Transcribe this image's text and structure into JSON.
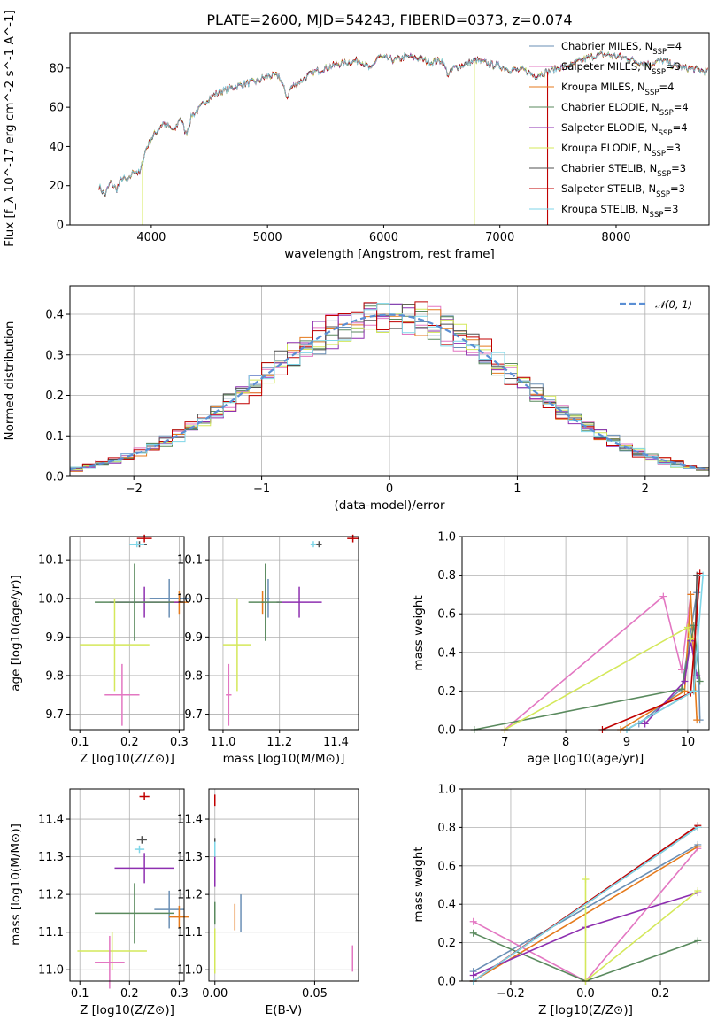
{
  "figure": {
    "title": "PLATE=2600, MJD=54243, FIBERID=0373, z=0.074"
  },
  "colors": {
    "chabrier_miles": "#6a8fb5",
    "salpeter_miles": "#e377c2",
    "kroupa_miles": "#e57a1c",
    "chabrier_elodie": "#5a8a5e",
    "salpeter_elodie": "#8e2fb0",
    "kroupa_elodie": "#d4e85a",
    "chabrier_stelib": "#505050",
    "salpeter_stelib": "#c00000",
    "kroupa_stelib": "#7fd6e8",
    "gauss": "#5b8fd4"
  },
  "chart_data": [
    {
      "id": "spectrum",
      "type": "line",
      "title": "PLATE=2600, MJD=54243, FIBERID=0373, z=0.074",
      "xlabel": "wavelength [Angstrom, rest frame]",
      "ylabel": "Flux [f_λ 10^-17 erg cm^-2 s^-1 A^-1]",
      "xlim": [
        3300,
        8800
      ],
      "ylim": [
        0,
        98
      ],
      "xticks": [
        "4000",
        "5000",
        "6000",
        "7000",
        "8000"
      ],
      "yticks": [
        "0",
        "20",
        "40",
        "60",
        "80"
      ],
      "grid": false,
      "legend_position": "top-right",
      "x": [
        3550,
        3600,
        3650,
        3700,
        3750,
        3800,
        3850,
        3900,
        3950,
        4000,
        4050,
        4100,
        4150,
        4200,
        4250,
        4300,
        4350,
        4400,
        4450,
        4500,
        4600,
        4700,
        4800,
        4900,
        5000,
        5100,
        5170,
        5200,
        5300,
        5400,
        5500,
        5600,
        5700,
        5800,
        5890,
        5950,
        6000,
        6100,
        6200,
        6300,
        6400,
        6500,
        6560,
        6600,
        6700,
        6800,
        6900,
        7000,
        7100,
        7200,
        7300,
        7400,
        7500,
        7600,
        7700,
        7800,
        7900,
        8000,
        8100,
        8200,
        8300,
        8400,
        8500,
        8600,
        8700,
        8790
      ],
      "y": [
        20,
        15,
        22,
        18,
        24,
        22,
        28,
        26,
        38,
        44,
        48,
        52,
        50,
        48,
        55,
        46,
        56,
        58,
        62,
        65,
        68,
        70,
        72,
        73,
        76,
        76,
        65,
        70,
        74,
        78,
        80,
        82,
        83,
        84,
        79,
        86,
        85,
        84,
        86,
        85,
        83,
        84,
        76,
        80,
        82,
        84,
        82,
        81,
        79,
        79,
        76,
        78,
        80,
        81,
        84,
        86,
        87,
        86,
        85,
        83,
        82,
        84,
        81,
        80,
        79,
        78
      ],
      "series": [
        {
          "name": "Chabrier MILES, N_SSP=4",
          "key": "chabrier_miles"
        },
        {
          "name": "Salpeter MILES, N_SSP=3",
          "key": "salpeter_miles"
        },
        {
          "name": "Kroupa MILES, N_SSP=4",
          "key": "kroupa_miles"
        },
        {
          "name": "Chabrier ELODIE, N_SSP=4",
          "key": "chabrier_elodie"
        },
        {
          "name": "Salpeter ELODIE, N_SSP=4",
          "key": "salpeter_elodie"
        },
        {
          "name": "Kroupa ELODIE, N_SSP=3",
          "key": "kroupa_elodie"
        },
        {
          "name": "Chabrier STELIB, N_SSP=3",
          "key": "chabrier_stelib"
        },
        {
          "name": "Salpeter STELIB, N_SSP=3",
          "key": "salpeter_stelib"
        },
        {
          "name": "Kroupa STELIB, N_SSP=3",
          "key": "kroupa_stelib"
        }
      ]
    },
    {
      "id": "residuals",
      "type": "histogram",
      "xlabel": "(data-model)/error",
      "ylabel": "Normed distribution",
      "xlim": [
        -2.5,
        2.5
      ],
      "ylim": [
        0,
        0.47
      ],
      "xticks": [
        "−2",
        "−1",
        "0",
        "1",
        "2"
      ],
      "yticks": [
        "0.0",
        "0.1",
        "0.2",
        "0.3",
        "0.4"
      ],
      "grid": true,
      "legend_position": "top-right",
      "legend": "N(0,1)",
      "reference_curve": "standard normal, peak 0.399"
    },
    {
      "id": "age_vs_Z",
      "type": "scatter",
      "xlabel": "Z [log10(Z/Z⊙)]",
      "ylabel": "age  [log10(age/yr)]",
      "xlim": [
        0.08,
        0.31
      ],
      "ylim": [
        9.66,
        10.16
      ],
      "xticks": [
        "0.1",
        "0.2",
        "0.3"
      ],
      "yticks": [
        "9.7",
        "9.8",
        "9.9",
        "10.0",
        "10.1"
      ],
      "grid": true,
      "points": [
        {
          "key": "salpeter_stelib",
          "x": 0.23,
          "y": 10.155,
          "xerr": 0.015,
          "yerr": 0.01
        },
        {
          "key": "chabrier_stelib",
          "x": 0.22,
          "y": 10.14,
          "xerr": 0.015,
          "yerr": 0.008
        },
        {
          "key": "kroupa_stelib",
          "x": 0.215,
          "y": 10.14,
          "xerr": 0.015,
          "yerr": 0.008
        },
        {
          "key": "chabrier_miles",
          "x": 0.28,
          "y": 10.0,
          "xerr": 0.04,
          "yerr": 0.05
        },
        {
          "key": "kroupa_miles",
          "x": 0.3,
          "y": 9.99,
          "xerr": 0.02,
          "yerr": 0.03
        },
        {
          "key": "salpeter_elodie",
          "x": 0.23,
          "y": 9.99,
          "xerr": 0.07,
          "yerr": 0.04
        },
        {
          "key": "chabrier_elodie",
          "x": 0.21,
          "y": 9.99,
          "xerr": 0.08,
          "yerr": 0.1
        },
        {
          "key": "kroupa_elodie",
          "x": 0.17,
          "y": 9.88,
          "xerr": 0.07,
          "yerr": 0.12
        },
        {
          "key": "salpeter_miles",
          "x": 0.185,
          "y": 9.75,
          "xerr": 0.035,
          "yerr": 0.08
        }
      ]
    },
    {
      "id": "age_vs_mass",
      "type": "scatter",
      "xlabel": "mass [log10(M/M⊙)]",
      "xlim": [
        10.95,
        11.48
      ],
      "ylim": [
        9.66,
        10.16
      ],
      "xticks": [
        "11.0",
        "11.2",
        "11.4"
      ],
      "yticks": [
        "9.7",
        "9.8",
        "9.9",
        "10.0",
        "10.1"
      ],
      "grid": true,
      "points": [
        {
          "key": "salpeter_stelib",
          "x": 11.46,
          "y": 10.155,
          "xerr": 0.02,
          "yerr": 0.01
        },
        {
          "key": "chabrier_stelib",
          "x": 11.34,
          "y": 10.14,
          "xerr": 0.01,
          "yerr": 0.008
        },
        {
          "key": "kroupa_stelib",
          "x": 11.32,
          "y": 10.14,
          "xerr": 0.01,
          "yerr": 0.008
        },
        {
          "key": "chabrier_miles",
          "x": 11.16,
          "y": 10.0,
          "xerr": 0.005,
          "yerr": 0.05
        },
        {
          "key": "kroupa_miles",
          "x": 11.14,
          "y": 9.99,
          "xerr": 0.005,
          "yerr": 0.03
        },
        {
          "key": "salpeter_elodie",
          "x": 11.27,
          "y": 9.99,
          "xerr": 0.08,
          "yerr": 0.04
        },
        {
          "key": "chabrier_elodie",
          "x": 11.15,
          "y": 9.99,
          "xerr": 0.06,
          "yerr": 0.1
        },
        {
          "key": "kroupa_elodie",
          "x": 11.05,
          "y": 9.88,
          "xerr": 0.05,
          "yerr": 0.12
        },
        {
          "key": "salpeter_miles",
          "x": 11.02,
          "y": 9.75,
          "xerr": 0.01,
          "yerr": 0.08
        }
      ]
    },
    {
      "id": "weight_vs_age",
      "type": "line",
      "xlabel": "age  [log10(age/yr)]",
      "ylabel": "mass weight",
      "xlim": [
        6.3,
        10.35
      ],
      "ylim": [
        0,
        1.0
      ],
      "xticks": [
        "7",
        "8",
        "9",
        "10"
      ],
      "yticks": [
        "0.0",
        "0.2",
        "0.4",
        "0.6",
        "0.8",
        "1.0"
      ],
      "grid": true,
      "series": [
        {
          "key": "chabrier_miles",
          "x": [
            9.2,
            9.9,
            10.15,
            10.2
          ],
          "y": [
            0.03,
            0.21,
            0.71,
            0.05
          ]
        },
        {
          "key": "salpeter_miles",
          "x": [
            7.0,
            9.6,
            9.9,
            10.05
          ],
          "y": [
            0.0,
            0.69,
            0.31,
            0.7
          ]
        },
        {
          "key": "kroupa_miles",
          "x": [
            8.9,
            9.95,
            10.05,
            10.15
          ],
          "y": [
            0.0,
            0.2,
            0.7,
            0.05
          ]
        },
        {
          "key": "chabrier_elodie",
          "x": [
            6.5,
            9.9,
            10.1,
            10.2
          ],
          "y": [
            0.0,
            0.21,
            0.54,
            0.25
          ]
        },
        {
          "key": "salpeter_elodie",
          "x": [
            9.3,
            9.95,
            10.05,
            10.15
          ],
          "y": [
            0.03,
            0.25,
            0.46,
            0.28
          ]
        },
        {
          "key": "kroupa_elodie",
          "x": [
            7.0,
            10.0,
            10.05
          ],
          "y": [
            0.0,
            0.53,
            0.47
          ]
        },
        {
          "key": "chabrier_stelib",
          "x": [
            9.0,
            10.1,
            10.15
          ],
          "y": [
            0.0,
            0.2,
            0.8
          ]
        },
        {
          "key": "salpeter_stelib",
          "x": [
            8.6,
            10.05,
            10.2
          ],
          "y": [
            0.0,
            0.19,
            0.81
          ]
        },
        {
          "key": "kroupa_stelib",
          "x": [
            9.0,
            10.1,
            10.25
          ],
          "y": [
            0.0,
            0.2,
            0.8
          ]
        }
      ]
    },
    {
      "id": "mass_vs_Z",
      "type": "scatter",
      "xlabel": "Z [log10(Z/Z⊙)]",
      "ylabel": "mass [log10(M/M⊙)]",
      "xlim": [
        0.08,
        0.31
      ],
      "ylim": [
        10.97,
        11.48
      ],
      "xticks": [
        "0.1",
        "0.2",
        "0.3"
      ],
      "yticks": [
        "11.0",
        "11.1",
        "11.2",
        "11.3",
        "11.4"
      ],
      "grid": true,
      "points": [
        {
          "key": "salpeter_stelib",
          "x": 0.23,
          "y": 11.46,
          "xerr": 0.01,
          "yerr": 0.01
        },
        {
          "key": "chabrier_stelib",
          "x": 0.225,
          "y": 11.345,
          "xerr": 0.01,
          "yerr": 0.01
        },
        {
          "key": "kroupa_stelib",
          "x": 0.22,
          "y": 11.32,
          "xerr": 0.01,
          "yerr": 0.01
        },
        {
          "key": "salpeter_elodie",
          "x": 0.23,
          "y": 11.27,
          "xerr": 0.06,
          "yerr": 0.04
        },
        {
          "key": "chabrier_miles",
          "x": 0.28,
          "y": 11.16,
          "xerr": 0.03,
          "yerr": 0.05
        },
        {
          "key": "chabrier_elodie",
          "x": 0.21,
          "y": 11.15,
          "xerr": 0.08,
          "yerr": 0.08
        },
        {
          "key": "kroupa_miles",
          "x": 0.3,
          "y": 11.14,
          "xerr": 0.02,
          "yerr": 0.03
        },
        {
          "key": "kroupa_elodie",
          "x": 0.165,
          "y": 11.05,
          "xerr": 0.07,
          "yerr": 0.05
        },
        {
          "key": "salpeter_miles",
          "x": 0.16,
          "y": 11.02,
          "xerr": 0.03,
          "yerr": 0.07
        }
      ]
    },
    {
      "id": "mass_vs_ebv",
      "type": "scatter",
      "xlabel": "E(B-V)",
      "xlim": [
        -0.003,
        0.072
      ],
      "ylim": [
        10.97,
        11.48
      ],
      "xticks": [
        "0.00",
        "0.05"
      ],
      "yticks": [
        "11.0",
        "11.1",
        "11.2",
        "11.3",
        "11.4"
      ],
      "grid": true,
      "points": [
        {
          "key": "salpeter_stelib",
          "x": 0.0,
          "y": 11.45,
          "xerr": 0,
          "yerr": 0.015
        },
        {
          "key": "chabrier_stelib",
          "x": 0.0,
          "y": 11.34,
          "xerr": 0,
          "yerr": 0.01
        },
        {
          "key": "kroupa_stelib",
          "x": 0.0,
          "y": 11.32,
          "xerr": 0,
          "yerr": 0.02
        },
        {
          "key": "salpeter_elodie",
          "x": 0.0,
          "y": 11.26,
          "xerr": 0,
          "yerr": 0.04
        },
        {
          "key": "chabrier_miles",
          "x": 0.013,
          "y": 11.15,
          "xerr": 0,
          "yerr": 0.05
        },
        {
          "key": "chabrier_elodie",
          "x": 0.0,
          "y": 11.15,
          "xerr": 0,
          "yerr": 0.03
        },
        {
          "key": "kroupa_miles",
          "x": 0.01,
          "y": 11.14,
          "xerr": 0,
          "yerr": 0.035
        },
        {
          "key": "kroupa_elodie",
          "x": 0.0,
          "y": 11.05,
          "xerr": 0,
          "yerr": 0.06
        },
        {
          "key": "salpeter_miles",
          "x": 0.069,
          "y": 11.03,
          "xerr": 0,
          "yerr": 0.035
        }
      ]
    },
    {
      "id": "weight_vs_Z",
      "type": "line",
      "xlabel": "Z [log10(Z/Z⊙)]",
      "ylabel": "mass weight",
      "xlim": [
        -0.33,
        0.33
      ],
      "ylim": [
        0,
        1.0
      ],
      "xticks": [
        "−0.2",
        "0.0",
        "0.2"
      ],
      "yticks": [
        "0.0",
        "0.2",
        "0.4",
        "0.6",
        "0.8",
        "1.0"
      ],
      "grid": true,
      "series": [
        {
          "key": "chabrier_miles",
          "x": [
            -0.3,
            0.3
          ],
          "y": [
            0.05,
            0.71
          ]
        },
        {
          "key": "salpeter_miles",
          "x": [
            -0.3,
            0.0,
            0.3
          ],
          "y": [
            0.31,
            0.0,
            0.69
          ]
        },
        {
          "key": "kroupa_miles",
          "x": [
            -0.3,
            0.3
          ],
          "y": [
            0.0,
            0.7
          ]
        },
        {
          "key": "chabrier_elodie",
          "x": [
            -0.3,
            0.0,
            0.3
          ],
          "y": [
            0.25,
            0.0,
            0.21
          ]
        },
        {
          "key": "salpeter_elodie",
          "x": [
            -0.3,
            0.0,
            0.3
          ],
          "y": [
            0.03,
            0.28,
            0.46
          ]
        },
        {
          "key": "kroupa_elodie",
          "x": [
            0.0,
            0.0,
            0.3
          ],
          "y": [
            0.53,
            0.0,
            0.47
          ]
        },
        {
          "key": "chabrier_stelib",
          "x": [
            -0.3,
            0.3
          ],
          "y": [
            0.0,
            0.8
          ]
        },
        {
          "key": "salpeter_stelib",
          "x": [
            -0.3,
            0.3
          ],
          "y": [
            0.0,
            0.81
          ]
        },
        {
          "key": "kroupa_stelib",
          "x": [
            -0.3,
            0.3
          ],
          "y": [
            0.0,
            0.8
          ]
        }
      ]
    }
  ]
}
